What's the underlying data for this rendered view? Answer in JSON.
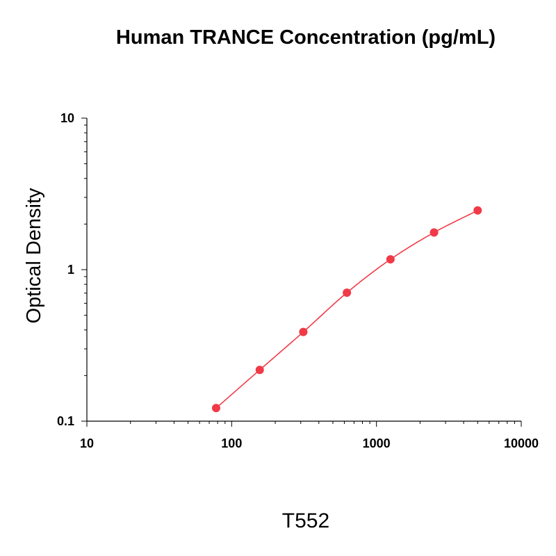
{
  "chart_data": {
    "type": "scatter",
    "title": "Human TRANCE Concentration (pg/mL)",
    "xlabel": "",
    "ylabel": "Optical Density",
    "x_scale": "log",
    "y_scale": "log",
    "xlim": [
      10,
      10000
    ],
    "ylim": [
      0.1,
      10
    ],
    "x_ticks": [
      "10",
      "100",
      "1000",
      "10000"
    ],
    "y_ticks": [
      "10",
      "1",
      "0.1"
    ],
    "grid": false,
    "series": [
      {
        "x": [
          78.1,
          156.3,
          312.5,
          625,
          1250,
          2500,
          5000
        ],
        "y": [
          0.122,
          0.218,
          0.388,
          0.705,
          1.17,
          1.76,
          2.46
        ],
        "color": "#f03a47",
        "fit_curve": true
      }
    ],
    "footer_label": "T552"
  }
}
